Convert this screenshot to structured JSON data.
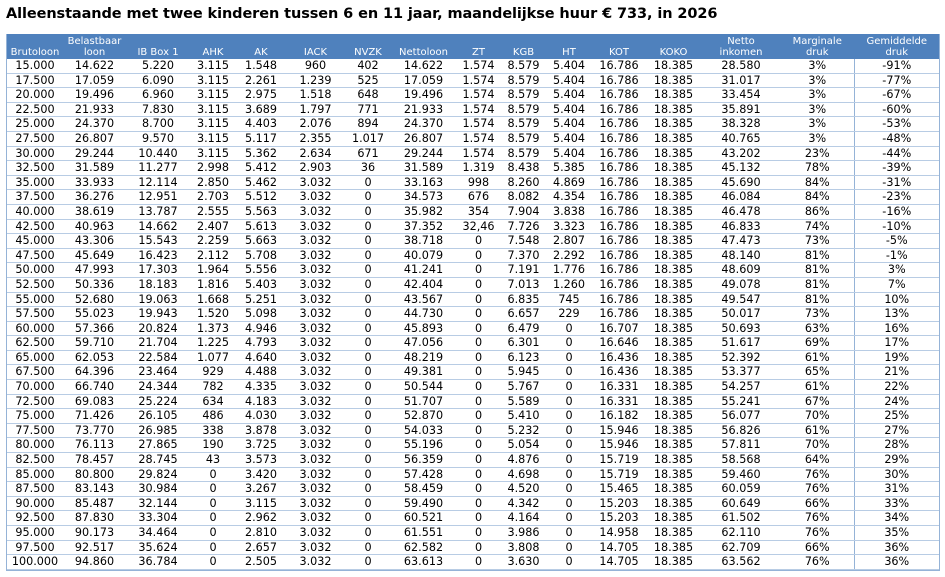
{
  "title": "Alleenstaande met twee kinderen tussen 6 en 11 jaar, maandelijkse huur € 733, in 2026",
  "colors": {
    "header_bg": "#4f81bd",
    "grid": "#b8cce4"
  },
  "columns": [
    [
      "Brutoloon"
    ],
    [
      "Belastbaar",
      "loon"
    ],
    [
      "IB Box 1"
    ],
    [
      "AHK"
    ],
    [
      "AK"
    ],
    [
      "IACK"
    ],
    [
      "NVZK"
    ],
    [
      "Nettoloon"
    ],
    [
      "ZT"
    ],
    [
      "KGB"
    ],
    [
      "HT"
    ],
    [
      "KOT"
    ],
    [
      "KOKO"
    ],
    [
      "Netto",
      "inkomen"
    ],
    [
      "Marginale",
      "druk"
    ],
    [
      "Gemiddelde",
      "druk"
    ]
  ],
  "rows": [
    [
      "15.000",
      "14.622",
      "5.220",
      "3.115",
      "1.548",
      "960",
      "402",
      "14.622",
      "1.574",
      "8.579",
      "5.404",
      "16.786",
      "18.385",
      "28.580",
      "3%",
      "-91%"
    ],
    [
      "17.500",
      "17.059",
      "6.090",
      "3.115",
      "2.261",
      "1.239",
      "525",
      "17.059",
      "1.574",
      "8.579",
      "5.404",
      "16.786",
      "18.385",
      "31.017",
      "3%",
      "-77%"
    ],
    [
      "20.000",
      "19.496",
      "6.960",
      "3.115",
      "2.975",
      "1.518",
      "648",
      "19.496",
      "1.574",
      "8.579",
      "5.404",
      "16.786",
      "18.385",
      "33.454",
      "3%",
      "-67%"
    ],
    [
      "22.500",
      "21.933",
      "7.830",
      "3.115",
      "3.689",
      "1.797",
      "771",
      "21.933",
      "1.574",
      "8.579",
      "5.404",
      "16.786",
      "18.385",
      "35.891",
      "3%",
      "-60%"
    ],
    [
      "25.000",
      "24.370",
      "8.700",
      "3.115",
      "4.403",
      "2.076",
      "894",
      "24.370",
      "1.574",
      "8.579",
      "5.404",
      "16.786",
      "18.385",
      "38.328",
      "3%",
      "-53%"
    ],
    [
      "27.500",
      "26.807",
      "9.570",
      "3.115",
      "5.117",
      "2.355",
      "1.017",
      "26.807",
      "1.574",
      "8.579",
      "5.404",
      "16.786",
      "18.385",
      "40.765",
      "3%",
      "-48%"
    ],
    [
      "30.000",
      "29.244",
      "10.440",
      "3.115",
      "5.362",
      "2.634",
      "671",
      "29.244",
      "1.574",
      "8.579",
      "5.404",
      "16.786",
      "18.385",
      "43.202",
      "23%",
      "-44%"
    ],
    [
      "32.500",
      "31.589",
      "11.277",
      "2.998",
      "5.412",
      "2.903",
      "36",
      "31.589",
      "1.319",
      "8.438",
      "5.385",
      "16.786",
      "18.385",
      "45.132",
      "78%",
      "-39%"
    ],
    [
      "35.000",
      "33.933",
      "12.114",
      "2.850",
      "5.462",
      "3.032",
      "0",
      "33.163",
      "998",
      "8.260",
      "4.869",
      "16.786",
      "18.385",
      "45.690",
      "84%",
      "-31%"
    ],
    [
      "37.500",
      "36.276",
      "12.951",
      "2.703",
      "5.512",
      "3.032",
      "0",
      "34.573",
      "676",
      "8.082",
      "4.354",
      "16.786",
      "18.385",
      "46.084",
      "84%",
      "-23%"
    ],
    [
      "40.000",
      "38.619",
      "13.787",
      "2.555",
      "5.563",
      "3.032",
      "0",
      "35.982",
      "354",
      "7.904",
      "3.838",
      "16.786",
      "18.385",
      "46.478",
      "86%",
      "-16%"
    ],
    [
      "42.500",
      "40.963",
      "14.662",
      "2.407",
      "5.613",
      "3.032",
      "0",
      "37.352",
      "32,46",
      "7.726",
      "3.323",
      "16.786",
      "18.385",
      "46.833",
      "74%",
      "-10%"
    ],
    [
      "45.000",
      "43.306",
      "15.543",
      "2.259",
      "5.663",
      "3.032",
      "0",
      "38.718",
      "0",
      "7.548",
      "2.807",
      "16.786",
      "18.385",
      "47.473",
      "73%",
      "-5%"
    ],
    [
      "47.500",
      "45.649",
      "16.423",
      "2.112",
      "5.708",
      "3.032",
      "0",
      "40.079",
      "0",
      "7.370",
      "2.292",
      "16.786",
      "18.385",
      "48.140",
      "81%",
      "-1%"
    ],
    [
      "50.000",
      "47.993",
      "17.303",
      "1.964",
      "5.556",
      "3.032",
      "0",
      "41.241",
      "0",
      "7.191",
      "1.776",
      "16.786",
      "18.385",
      "48.609",
      "81%",
      "3%"
    ],
    [
      "52.500",
      "50.336",
      "18.183",
      "1.816",
      "5.403",
      "3.032",
      "0",
      "42.404",
      "0",
      "7.013",
      "1.260",
      "16.786",
      "18.385",
      "49.078",
      "81%",
      "7%"
    ],
    [
      "55.000",
      "52.680",
      "19.063",
      "1.668",
      "5.251",
      "3.032",
      "0",
      "43.567",
      "0",
      "6.835",
      "745",
      "16.786",
      "18.385",
      "49.547",
      "81%",
      "10%"
    ],
    [
      "57.500",
      "55.023",
      "19.943",
      "1.520",
      "5.098",
      "3.032",
      "0",
      "44.730",
      "0",
      "6.657",
      "229",
      "16.786",
      "18.385",
      "50.017",
      "73%",
      "13%"
    ],
    [
      "60.000",
      "57.366",
      "20.824",
      "1.373",
      "4.946",
      "3.032",
      "0",
      "45.893",
      "0",
      "6.479",
      "0",
      "16.707",
      "18.385",
      "50.693",
      "63%",
      "16%"
    ],
    [
      "62.500",
      "59.710",
      "21.704",
      "1.225",
      "4.793",
      "3.032",
      "0",
      "47.056",
      "0",
      "6.301",
      "0",
      "16.646",
      "18.385",
      "51.617",
      "69%",
      "17%"
    ],
    [
      "65.000",
      "62.053",
      "22.584",
      "1.077",
      "4.640",
      "3.032",
      "0",
      "48.219",
      "0",
      "6.123",
      "0",
      "16.436",
      "18.385",
      "52.392",
      "61%",
      "19%"
    ],
    [
      "67.500",
      "64.396",
      "23.464",
      "929",
      "4.488",
      "3.032",
      "0",
      "49.381",
      "0",
      "5.945",
      "0",
      "16.436",
      "18.385",
      "53.377",
      "65%",
      "21%"
    ],
    [
      "70.000",
      "66.740",
      "24.344",
      "782",
      "4.335",
      "3.032",
      "0",
      "50.544",
      "0",
      "5.767",
      "0",
      "16.331",
      "18.385",
      "54.257",
      "61%",
      "22%"
    ],
    [
      "72.500",
      "69.083",
      "25.224",
      "634",
      "4.183",
      "3.032",
      "0",
      "51.707",
      "0",
      "5.589",
      "0",
      "16.331",
      "18.385",
      "55.241",
      "67%",
      "24%"
    ],
    [
      "75.000",
      "71.426",
      "26.105",
      "486",
      "4.030",
      "3.032",
      "0",
      "52.870",
      "0",
      "5.410",
      "0",
      "16.182",
      "18.385",
      "56.077",
      "70%",
      "25%"
    ],
    [
      "77.500",
      "73.770",
      "26.985",
      "338",
      "3.878",
      "3.032",
      "0",
      "54.033",
      "0",
      "5.232",
      "0",
      "15.946",
      "18.385",
      "56.826",
      "61%",
      "27%"
    ],
    [
      "80.000",
      "76.113",
      "27.865",
      "190",
      "3.725",
      "3.032",
      "0",
      "55.196",
      "0",
      "5.054",
      "0",
      "15.946",
      "18.385",
      "57.811",
      "70%",
      "28%"
    ],
    [
      "82.500",
      "78.457",
      "28.745",
      "43",
      "3.573",
      "3.032",
      "0",
      "56.359",
      "0",
      "4.876",
      "0",
      "15.719",
      "18.385",
      "58.568",
      "64%",
      "29%"
    ],
    [
      "85.000",
      "80.800",
      "29.824",
      "0",
      "3.420",
      "3.032",
      "0",
      "57.428",
      "0",
      "4.698",
      "0",
      "15.719",
      "18.385",
      "59.460",
      "76%",
      "30%"
    ],
    [
      "87.500",
      "83.143",
      "30.984",
      "0",
      "3.267",
      "3.032",
      "0",
      "58.459",
      "0",
      "4.520",
      "0",
      "15.465",
      "18.385",
      "60.059",
      "76%",
      "31%"
    ],
    [
      "90.000",
      "85.487",
      "32.144",
      "0",
      "3.115",
      "3.032",
      "0",
      "59.490",
      "0",
      "4.342",
      "0",
      "15.203",
      "18.385",
      "60.649",
      "66%",
      "33%"
    ],
    [
      "92.500",
      "87.830",
      "33.304",
      "0",
      "2.962",
      "3.032",
      "0",
      "60.521",
      "0",
      "4.164",
      "0",
      "15.203",
      "18.385",
      "61.502",
      "76%",
      "34%"
    ],
    [
      "95.000",
      "90.173",
      "34.464",
      "0",
      "2.810",
      "3.032",
      "0",
      "61.551",
      "0",
      "3.986",
      "0",
      "14.958",
      "18.385",
      "62.110",
      "76%",
      "35%"
    ],
    [
      "97.500",
      "92.517",
      "35.624",
      "0",
      "2.657",
      "3.032",
      "0",
      "62.582",
      "0",
      "3.808",
      "0",
      "14.705",
      "18.385",
      "62.709",
      "66%",
      "36%"
    ],
    [
      "100.000",
      "94.860",
      "36.784",
      "0",
      "2.505",
      "3.032",
      "0",
      "63.613",
      "0",
      "3.630",
      "0",
      "14.705",
      "18.385",
      "63.562",
      "76%",
      "36%"
    ]
  ]
}
